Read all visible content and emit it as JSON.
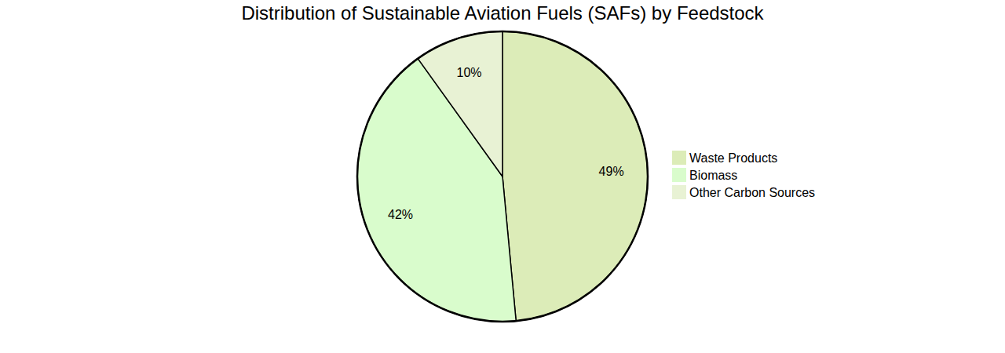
{
  "chart_data": {
    "type": "pie",
    "title": "Distribution of Sustainable Aviation Fuels (SAFs) by Feedstock",
    "categories": [
      "Waste Products",
      "Biomass",
      "Other Carbon Sources"
    ],
    "values": [
      49,
      42,
      10
    ],
    "value_labels": [
      "49%",
      "42%",
      "10%"
    ],
    "colors": [
      "#dcecb8",
      "#d9fccc",
      "#e8f2d4"
    ],
    "data_labels": true,
    "legend": "right"
  }
}
